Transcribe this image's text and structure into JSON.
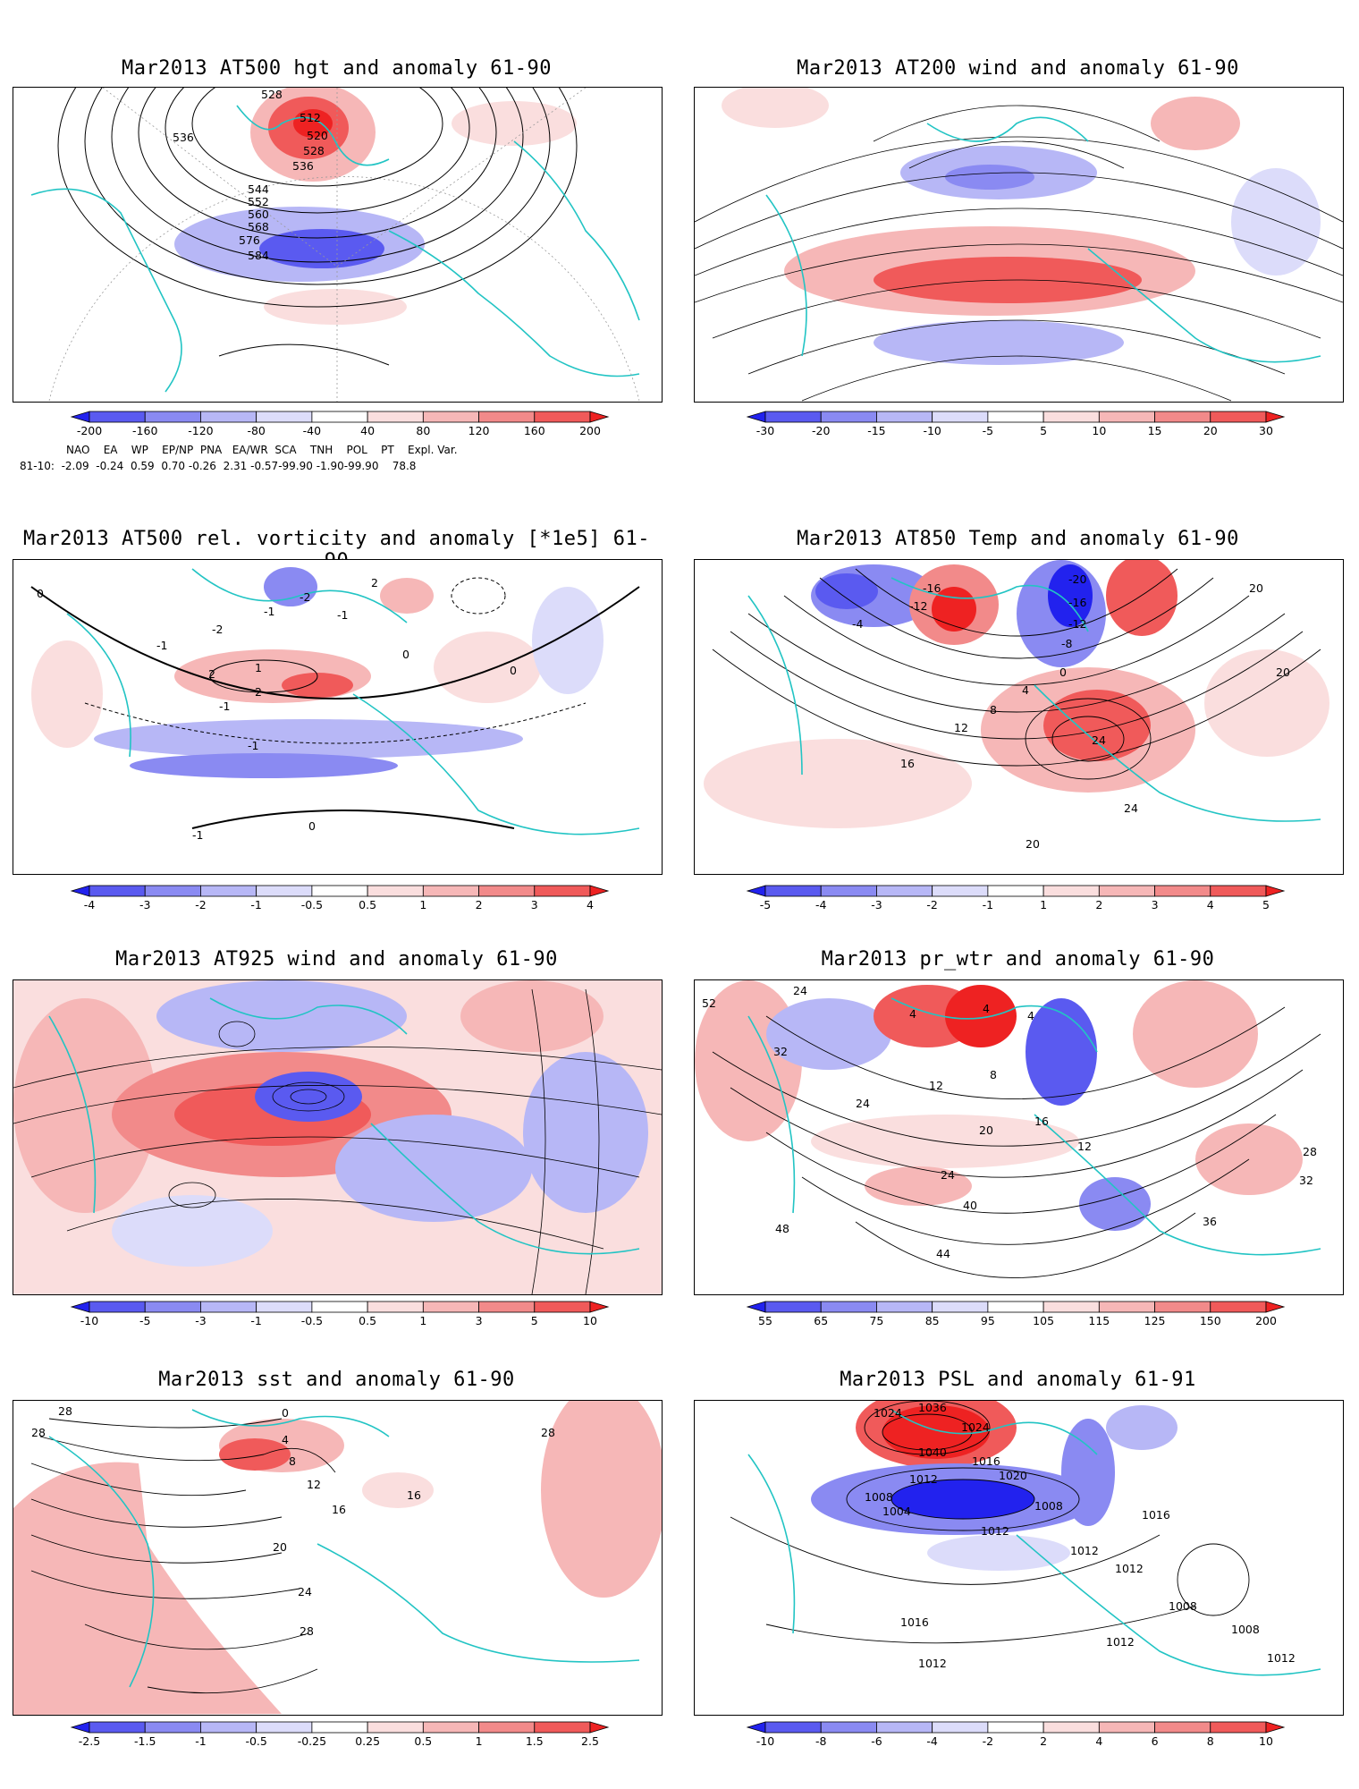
{
  "colors": {
    "neg": [
      "#2222ee",
      "#5a5af0",
      "#8a8af2",
      "#b7b7f6",
      "#dcdcfa"
    ],
    "pos": [
      "#fadede",
      "#f6b7b7",
      "#f28a8a",
      "#f05a5a",
      "#ee2222"
    ],
    "coast": "#22c4c4",
    "contour": "#000000"
  },
  "panels": [
    {
      "title": "Mar2013 AT500 hgt and anomaly 61-90",
      "colorbar": [
        "-200",
        "-160",
        "-120",
        "-80",
        "-40",
        "40",
        "80",
        "120",
        "160",
        "200"
      ],
      "contour_labels": [
        "528",
        "512",
        "520",
        "528",
        "536",
        "536",
        "544",
        "552",
        "560",
        "568",
        "576",
        "584"
      ],
      "indices": {
        "header": [
          "NAO",
          "EA",
          "WP",
          "EP/NP",
          "PNA",
          "EA/WR",
          "SCA",
          "TNH",
          "POL",
          "PT",
          "Expl. Var."
        ],
        "row_label": "81-10:",
        "values": [
          "-2.09",
          "-0.24",
          "0.59",
          "0.70",
          "-0.26",
          "2.31",
          "-0.57",
          "-99.90",
          "-1.90",
          "-99.90",
          "78.8"
        ]
      }
    },
    {
      "title": "Mar2013 AT200 wind and anomaly 61-90",
      "colorbar": [
        "-30",
        "-20",
        "-15",
        "-10",
        "-5",
        "5",
        "10",
        "15",
        "20",
        "30"
      ],
      "contour_labels": []
    },
    {
      "title": "Mar2013 AT500 rel. vorticity and anomaly [*1e5] 61-90",
      "colorbar": [
        "-4",
        "-3",
        "-2",
        "-1",
        "-0.5",
        "0.5",
        "1",
        "2",
        "3",
        "4"
      ],
      "contour_labels": [
        "-2",
        "2",
        "-1",
        "-2",
        "-1",
        "2",
        "2",
        "-1",
        "0",
        "0",
        "-1",
        "-1",
        "0",
        "0",
        "1",
        "-1"
      ]
    },
    {
      "title": "Mar2013 AT850 Temp and anomaly 61-90",
      "colorbar": [
        "-5",
        "-4",
        "-3",
        "-2",
        "-1",
        "1",
        "2",
        "3",
        "4",
        "5"
      ],
      "contour_labels": [
        "-16",
        "-12",
        "-20",
        "-16",
        "-12",
        "-8",
        "-4",
        "0",
        "4",
        "8",
        "12",
        "16",
        "20",
        "24",
        "24",
        "20",
        "20"
      ]
    },
    {
      "title": "Mar2013 AT925 wind and anomaly 61-90",
      "colorbar": [
        "-10",
        "-5",
        "-3",
        "-1",
        "-0.5",
        "0.5",
        "1",
        "3",
        "5",
        "10"
      ],
      "contour_labels": []
    },
    {
      "title": "Mar2013 pr_wtr and anomaly 61-90",
      "colorbar": [
        "55",
        "65",
        "75",
        "85",
        "95",
        "105",
        "115",
        "125",
        "150",
        "200"
      ],
      "contour_labels": [
        "24",
        "52",
        "32",
        "4",
        "4",
        "4",
        "8",
        "12",
        "16",
        "12",
        "20",
        "24",
        "24",
        "28",
        "32",
        "36",
        "40",
        "44",
        "48"
      ]
    },
    {
      "title": "Mar2013 sst and anomaly 61-90",
      "colorbar": [
        "-2.5",
        "-1.5",
        "-1",
        "-0.5",
        "-0.25",
        "0.25",
        "0.5",
        "1",
        "1.5",
        "2.5"
      ],
      "contour_labels": [
        "28",
        "28",
        "0",
        "4",
        "8",
        "12",
        "16",
        "20",
        "24",
        "28",
        "28",
        "16"
      ]
    },
    {
      "title": "Mar2013 PSL and anomaly 61-91",
      "colorbar": [
        "-10",
        "-8",
        "-6",
        "-4",
        "-2",
        "2",
        "4",
        "6",
        "8",
        "10"
      ],
      "contour_labels": [
        "1024",
        "1036",
        "1024",
        "1040",
        "1016",
        "1020",
        "1012",
        "1008",
        "1004",
        "1008",
        "1012",
        "1016",
        "1012",
        "1012",
        "1008",
        "1016",
        "1012",
        "1012",
        "1008",
        "1012"
      ]
    }
  ]
}
